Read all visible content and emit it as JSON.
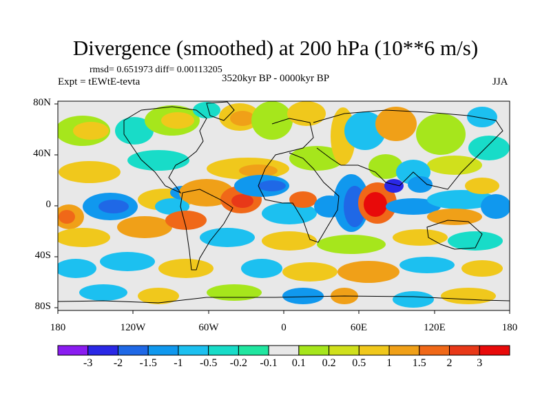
{
  "title": "Divergence (smoothed) at 200 hPa (10**6 m/s)",
  "stats": "rmsd= 0.651973 diff= 0.00113205",
  "experiment": "Expt = tEWtE-tevta",
  "period": "3520kyr BP - 0000kyr BP",
  "season": "JJA",
  "y_ticks": [
    "80N",
    "40N",
    "0",
    "40S",
    "80S"
  ],
  "x_ticks": [
    "180",
    "120W",
    "60W",
    "0",
    "60E",
    "120E",
    "180"
  ],
  "colorbar": {
    "labels": [
      "-3",
      "-2",
      "-1.5",
      "-1",
      "-0.5",
      "-0.2",
      "-0.1",
      "0.1",
      "0.2",
      "0.5",
      "1",
      "1.5",
      "2",
      "3"
    ],
    "colors": [
      "#8a1cf0",
      "#2a28e6",
      "#1f68e6",
      "#1098ee",
      "#1cc0f0",
      "#18dcc8",
      "#20e6a0",
      "#e8e8e8",
      "#a6e61c",
      "#d0e01c",
      "#f0c81c",
      "#f0a018",
      "#f06818",
      "#e83818",
      "#e80a0a"
    ]
  },
  "colors": {
    "land_line": "#000000",
    "neutral": "#e8e8e8"
  }
}
